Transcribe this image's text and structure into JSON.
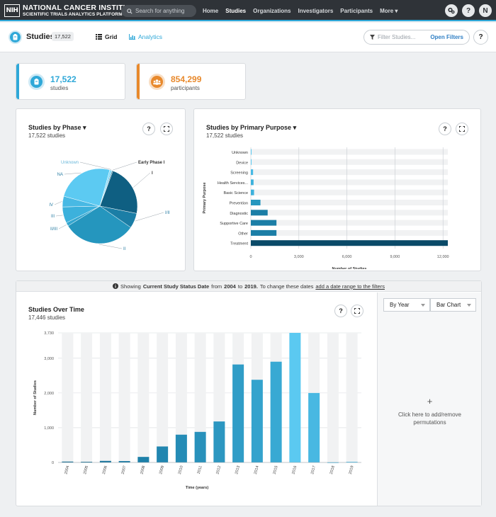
{
  "nav": {
    "logo_abbrev": "NIH",
    "logo_line1": "NATIONAL CANCER INSTITUTE",
    "logo_line2": "SCIENTIFIC TRIALS ANALYTICS PLATFORM",
    "search_placeholder": "Search for anything",
    "links": [
      "Home",
      "Studies",
      "Organizations",
      "Investigators",
      "Participants",
      "More ▾"
    ],
    "active": "Studies",
    "help_label": "?",
    "user_initial": "N"
  },
  "subheader": {
    "title": "Studies",
    "count": "17,522",
    "grid_label": "Grid",
    "analytics_label": "Analytics",
    "filter_placeholder": "Filter Studies...",
    "open_filters": "Open Filters",
    "help_label": "?"
  },
  "stats": {
    "studies": {
      "value": "17,522",
      "label": "studies",
      "color": "#2fa8d8"
    },
    "participants": {
      "value": "854,299",
      "label": "participants",
      "color": "#e8892c"
    }
  },
  "phase_panel": {
    "title": "Studies by Phase",
    "subtitle": "17,522 studies",
    "help": "?",
    "chart_data": {
      "type": "pie",
      "labels": [
        "Early Phase I",
        "I",
        "I/II",
        "II",
        "II/III",
        "III",
        "IV",
        "NA",
        "Unknown"
      ],
      "values": [
        0.4,
        22.5,
        6.5,
        31.5,
        1.5,
        7.0,
        4.6,
        25.0,
        1.0
      ],
      "colors": [
        "#0e5f82",
        "#0f5f82",
        "#1b7ea6",
        "#2596be",
        "#34a6cf",
        "#3cb1dc",
        "#48b9e4",
        "#5ccaf2",
        "#8cdcf8"
      ],
      "label_colors": [
        "#333",
        "#333",
        "#2a7da3",
        "#2a7da3",
        "#2a7da3",
        "#2a7da3",
        "#2a7da3",
        "#2a7da3",
        "#6ab8da"
      ]
    }
  },
  "purpose_panel": {
    "title": "Studies by Primary Purpose",
    "subtitle": "17,522 studies",
    "help": "?",
    "chart_data": {
      "type": "bar",
      "orientation": "horizontal",
      "categories": [
        "Unknown",
        "Device",
        "Screening",
        "Health Services...",
        "Basic Science",
        "Prevention",
        "Diagnostic",
        "Supportive Care",
        "Other",
        "Treatment"
      ],
      "values": [
        5,
        10,
        140,
        170,
        200,
        600,
        1050,
        1600,
        1600,
        12300
      ],
      "xlabel": "Number of Studies",
      "ylabel": "Primary Purpose",
      "xlim": [
        0,
        12300
      ],
      "xticks": [
        0,
        3000,
        6000,
        9000,
        12000
      ],
      "xtick_labels": [
        "0",
        "3,000",
        "6,000",
        "9,000",
        "12,000"
      ],
      "colors": [
        "#5ccaf2",
        "#5ccaf2",
        "#48b9e4",
        "#3cb1dc",
        "#3cb1dc",
        "#2596be",
        "#1b7ea6",
        "#1b7ea6",
        "#1b7ea6",
        "#0a4a68"
      ]
    }
  },
  "infobar": {
    "pre": "Showing",
    "field": "Current Study Status Date",
    "from_word": "from",
    "from": "2004",
    "to_word": "to",
    "to": "2019.",
    "post": "To change these dates",
    "link": "add a date range to the filters"
  },
  "time_panel": {
    "title": "Studies Over Time",
    "subtitle": "17,446 studies",
    "help": "?",
    "chart_data": {
      "type": "bar",
      "categories": [
        "2004",
        "2005",
        "2006",
        "2007",
        "2008",
        "2009",
        "2010",
        "2011",
        "2012",
        "2013",
        "2014",
        "2015",
        "2016",
        "2017",
        "2018",
        "2019"
      ],
      "values": [
        25,
        20,
        45,
        40,
        160,
        460,
        800,
        880,
        1180,
        2820,
        2380,
        2900,
        3730,
        2000,
        5,
        20
      ],
      "xlabel": "Time (years)",
      "ylabel": "Number of Studies",
      "ylim": [
        0,
        3730
      ],
      "yticks": [
        0,
        1000,
        2000,
        3000,
        3730
      ],
      "ytick_labels": [
        "0",
        "1,000",
        "2,000",
        "3,000",
        "3,730"
      ]
    }
  },
  "controls": {
    "period": "By Year",
    "chart_type": "Bar Chart",
    "add_plus": "+",
    "add_text_1": "Click here to add/remove",
    "add_text_2": "permutations"
  }
}
